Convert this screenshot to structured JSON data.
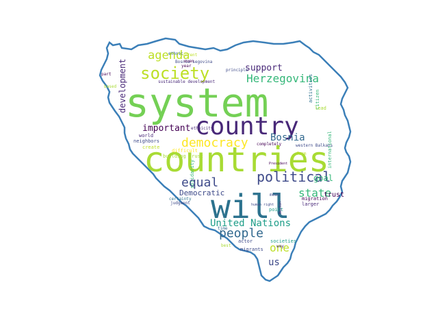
{
  "palette": [
    "#74d055",
    "#3e4a89",
    "#a8db34",
    "#2c728e",
    "#1f9e89",
    "#482878",
    "#35b779",
    "#bddf26",
    "#26828e",
    "#440154",
    "#fde725",
    "#31688e"
  ],
  "outline_color": "#3b7fb8",
  "words": [
    {
      "text": "system",
      "color": "#74d055"
    },
    {
      "text": "countries",
      "color": "#a8db34"
    },
    {
      "text": "will",
      "color": "#2c728e"
    },
    {
      "text": "country",
      "color": "#482878"
    },
    {
      "text": "society",
      "color": "#bddf26"
    },
    {
      "text": "political",
      "color": "#3e4a89"
    },
    {
      "text": "democracy",
      "color": "#fde725"
    },
    {
      "text": "people",
      "color": "#31688e"
    },
    {
      "text": "state",
      "color": "#35b779"
    },
    {
      "text": "equal",
      "color": "#3e4a89"
    },
    {
      "text": "agenda",
      "color": "#bddf26"
    },
    {
      "text": "Herzegovina",
      "color": "#35b779"
    },
    {
      "text": "United Nations",
      "color": "#1f9e89"
    },
    {
      "text": "development",
      "color": "#482878"
    },
    {
      "text": "important",
      "color": "#440154"
    },
    {
      "text": "Bosnia",
      "color": "#31688e"
    },
    {
      "text": "one",
      "color": "#bddf26"
    },
    {
      "text": "us",
      "color": "#3e4a89"
    },
    {
      "text": "support",
      "color": "#482878"
    },
    {
      "text": "Democratic",
      "color": "#3e4a89"
    },
    {
      "text": "goal",
      "color": "#35b779"
    },
    {
      "text": "trust",
      "color": "#440154"
    },
    {
      "text": "sustainable development",
      "color": "#482878"
    },
    {
      "text": "Bosnia segovina",
      "color": "#3e4a89"
    },
    {
      "text": "ethnic",
      "color": "#31688e"
    },
    {
      "text": "year",
      "color": "#440154"
    },
    {
      "text": "principle",
      "color": "#3e4a89"
    },
    {
      "text": "part",
      "color": "#440154"
    },
    {
      "text": "world",
      "color": "#482878"
    },
    {
      "text": "neighbors",
      "color": "#3e4a89"
    },
    {
      "text": "create",
      "color": "#bddf26"
    },
    {
      "text": "building trust",
      "color": "#a8db34"
    },
    {
      "text": "certainty",
      "color": "#2c728e"
    },
    {
      "text": "judgment",
      "color": "#3e4a89"
    },
    {
      "text": "solidarity",
      "color": "#35b779"
    },
    {
      "text": "mean",
      "color": "#3e4a89"
    },
    {
      "text": "point",
      "color": "#1f9e89"
    },
    {
      "text": "actor",
      "color": "#3e4a89"
    },
    {
      "text": "way",
      "color": "#482878"
    },
    {
      "text": "best",
      "color": "#a8db34"
    },
    {
      "text": "migrants",
      "color": "#3e4a89"
    },
    {
      "text": "migration",
      "color": "#440154"
    },
    {
      "text": "larger",
      "color": "#482878"
    },
    {
      "text": "societies",
      "color": "#1f9e89"
    },
    {
      "text": "western Balkans",
      "color": "#3e4a89"
    },
    {
      "text": "completely",
      "color": "#440154"
    },
    {
      "text": "form",
      "color": "#bddf26"
    },
    {
      "text": "citizen",
      "color": "#35b779"
    },
    {
      "text": "activities",
      "color": "#2c728e"
    },
    {
      "text": "lead",
      "color": "#a8db34"
    },
    {
      "text": "even",
      "color": "#440154"
    },
    {
      "text": "ethnicity",
      "color": "#482878"
    },
    {
      "text": "international",
      "color": "#35b779"
    },
    {
      "text": "President",
      "color": "#440154"
    },
    {
      "text": "human right",
      "color": "#3e4a89"
    },
    {
      "text": "Boston",
      "color": "#482878"
    },
    {
      "text": "time",
      "color": "#31688e"
    },
    {
      "text": "difficult",
      "color": "#fde725"
    },
    {
      "text": "current",
      "color": "#bddf26"
    },
    {
      "text": "based",
      "color": "#a8db34"
    }
  ]
}
